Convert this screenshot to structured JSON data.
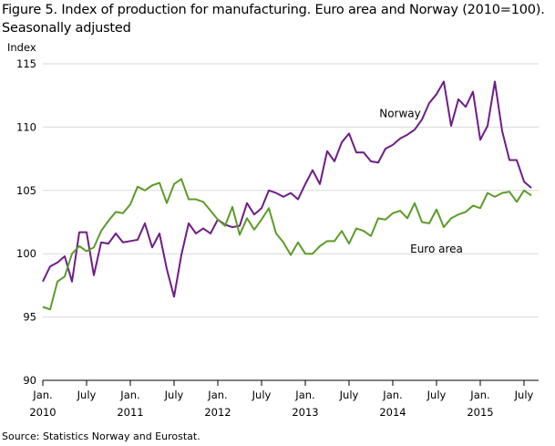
{
  "title": "Figure 5. Index of production for manufacturing. Euro area and Norway (2010=100). Seasonally adjusted",
  "source": "Source: Statistics Norway and Eurostat.",
  "chart_data": {
    "type": "line",
    "title": "Figure 5. Index of production for manufacturing. Euro area and Norway (2010=100). Seasonally adjusted",
    "ylabel": "Index",
    "xlabel": "",
    "ylim": [
      90,
      115
    ],
    "yticks": [
      90,
      95,
      100,
      105,
      110,
      115
    ],
    "grid": true,
    "xlim": [
      "2010-01",
      "2015-09"
    ],
    "xticks": [
      {
        "month": "2010-01",
        "line1": "Jan.",
        "line2": "2010"
      },
      {
        "month": "2010-07",
        "line1": "July",
        "line2": ""
      },
      {
        "month": "2011-01",
        "line1": "Jan.",
        "line2": "2011"
      },
      {
        "month": "2011-07",
        "line1": "July",
        "line2": ""
      },
      {
        "month": "2012-01",
        "line1": "Jan.",
        "line2": "2012"
      },
      {
        "month": "2012-07",
        "line1": "July",
        "line2": ""
      },
      {
        "month": "2013-01",
        "line1": "Jan.",
        "line2": "2013"
      },
      {
        "month": "2013-07",
        "line1": "July",
        "line2": ""
      },
      {
        "month": "2014-01",
        "line1": "Jan.",
        "line2": "2014"
      },
      {
        "month": "2014-07",
        "line1": "July",
        "line2": ""
      },
      {
        "month": "2015-01",
        "line1": "Jan.",
        "line2": "2015"
      },
      {
        "month": "2015-07",
        "line1": "July",
        "line2": ""
      }
    ],
    "start_month": "2010-01",
    "series": [
      {
        "name": "Norway",
        "color": "#6f1d86",
        "values": [
          97.8,
          99.0,
          99.3,
          99.8,
          97.8,
          101.7,
          101.7,
          98.3,
          100.9,
          100.8,
          101.6,
          100.9,
          101.0,
          101.1,
          102.4,
          100.5,
          101.6,
          98.8,
          96.6,
          99.9,
          102.4,
          101.6,
          102.0,
          101.6,
          102.7,
          102.3,
          102.1,
          102.2,
          104.0,
          103.1,
          103.6,
          105.0,
          104.8,
          104.5,
          104.8,
          104.3,
          105.5,
          106.6,
          105.5,
          108.1,
          107.3,
          108.8,
          109.5,
          108.0,
          108.0,
          107.3,
          107.2,
          108.3,
          108.6,
          109.1,
          109.4,
          109.8,
          110.6,
          111.9,
          112.6,
          113.6,
          110.1,
          112.2,
          111.6,
          112.8,
          109.0,
          110.1,
          113.6,
          109.7,
          107.4,
          107.4,
          105.7,
          105.2
        ]
      },
      {
        "name": "Euro area",
        "color": "#5c9b2a",
        "values": [
          95.8,
          95.6,
          97.8,
          98.2,
          100.0,
          100.6,
          100.2,
          100.5,
          101.8,
          102.6,
          103.3,
          103.2,
          103.9,
          105.3,
          105.0,
          105.4,
          105.6,
          104.0,
          105.5,
          105.9,
          104.3,
          104.3,
          104.1,
          103.4,
          102.7,
          102.2,
          103.7,
          101.5,
          102.8,
          101.9,
          102.7,
          103.6,
          101.6,
          100.9,
          99.9,
          100.9,
          100.0,
          100.0,
          100.6,
          101.0,
          101.0,
          101.8,
          100.8,
          102.0,
          101.8,
          101.4,
          102.8,
          102.7,
          103.2,
          103.4,
          102.8,
          104.0,
          102.5,
          102.4,
          103.5,
          102.1,
          102.8,
          103.1,
          103.3,
          103.8,
          103.6,
          104.8,
          104.5,
          104.8,
          104.9,
          104.1,
          105.0,
          104.6
        ]
      }
    ],
    "annotations": [
      {
        "text": "Norway",
        "series": "Norway",
        "month": "2014-02",
        "value": 110.8
      },
      {
        "text": "Euro area",
        "series": "Euro area",
        "month": "2014-07",
        "value": 100.1
      }
    ]
  }
}
